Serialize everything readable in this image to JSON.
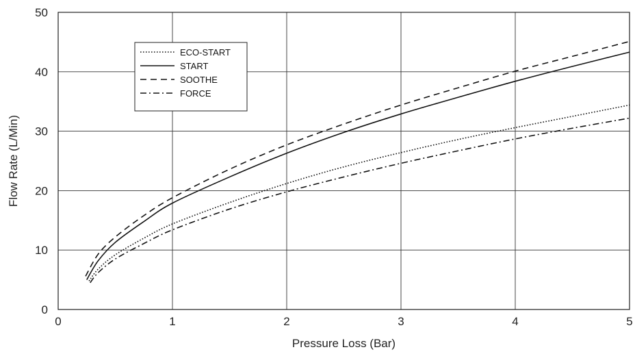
{
  "chart_data": {
    "type": "line",
    "title": "",
    "xlabel": "Pressure Loss (Bar)",
    "ylabel": "Flow Rate (L/Min)",
    "xlim": [
      0,
      5
    ],
    "ylim": [
      0,
      50
    ],
    "xticks": [
      "0",
      "1",
      "2",
      "3",
      "4",
      "5"
    ],
    "yticks": [
      "0",
      "10",
      "20",
      "30",
      "40",
      "50"
    ],
    "grid": true,
    "legend_position": "top-left",
    "series": [
      {
        "name": "ECO-START",
        "style": "dotted",
        "x": [
          0.27,
          0.35,
          0.5,
          0.75,
          1,
          1.5,
          2,
          2.5,
          3,
          3.5,
          4,
          4.5,
          5
        ],
        "y": [
          4.8,
          6.8,
          9.2,
          12.0,
          14.4,
          18.0,
          21.2,
          24.0,
          26.4,
          28.6,
          30.6,
          32.5,
          34.4
        ]
      },
      {
        "name": "START",
        "style": "solid",
        "x": [
          0.25,
          0.35,
          0.5,
          0.75,
          1,
          1.5,
          2,
          2.5,
          3,
          3.5,
          4,
          4.5,
          5
        ],
        "y": [
          5.0,
          8.2,
          11.3,
          14.8,
          17.9,
          22.3,
          26.3,
          29.8,
          32.9,
          35.7,
          38.4,
          40.9,
          43.3
        ]
      },
      {
        "name": "SOOTHE",
        "style": "dashed",
        "x": [
          0.24,
          0.35,
          0.5,
          0.75,
          1,
          1.5,
          2,
          2.5,
          3,
          3.5,
          4,
          4.5,
          5
        ],
        "y": [
          5.6,
          9.3,
          12.2,
          15.8,
          18.8,
          23.6,
          27.7,
          31.2,
          34.4,
          37.3,
          40.1,
          42.6,
          45.1
        ]
      },
      {
        "name": "FORCE",
        "style": "dashdot",
        "x": [
          0.28,
          0.35,
          0.5,
          0.75,
          1,
          1.5,
          2,
          2.5,
          3,
          3.5,
          4,
          4.5,
          5
        ],
        "y": [
          4.5,
          6.2,
          8.5,
          11.1,
          13.4,
          16.9,
          19.8,
          22.3,
          24.6,
          26.7,
          28.7,
          30.5,
          32.2
        ]
      }
    ]
  }
}
